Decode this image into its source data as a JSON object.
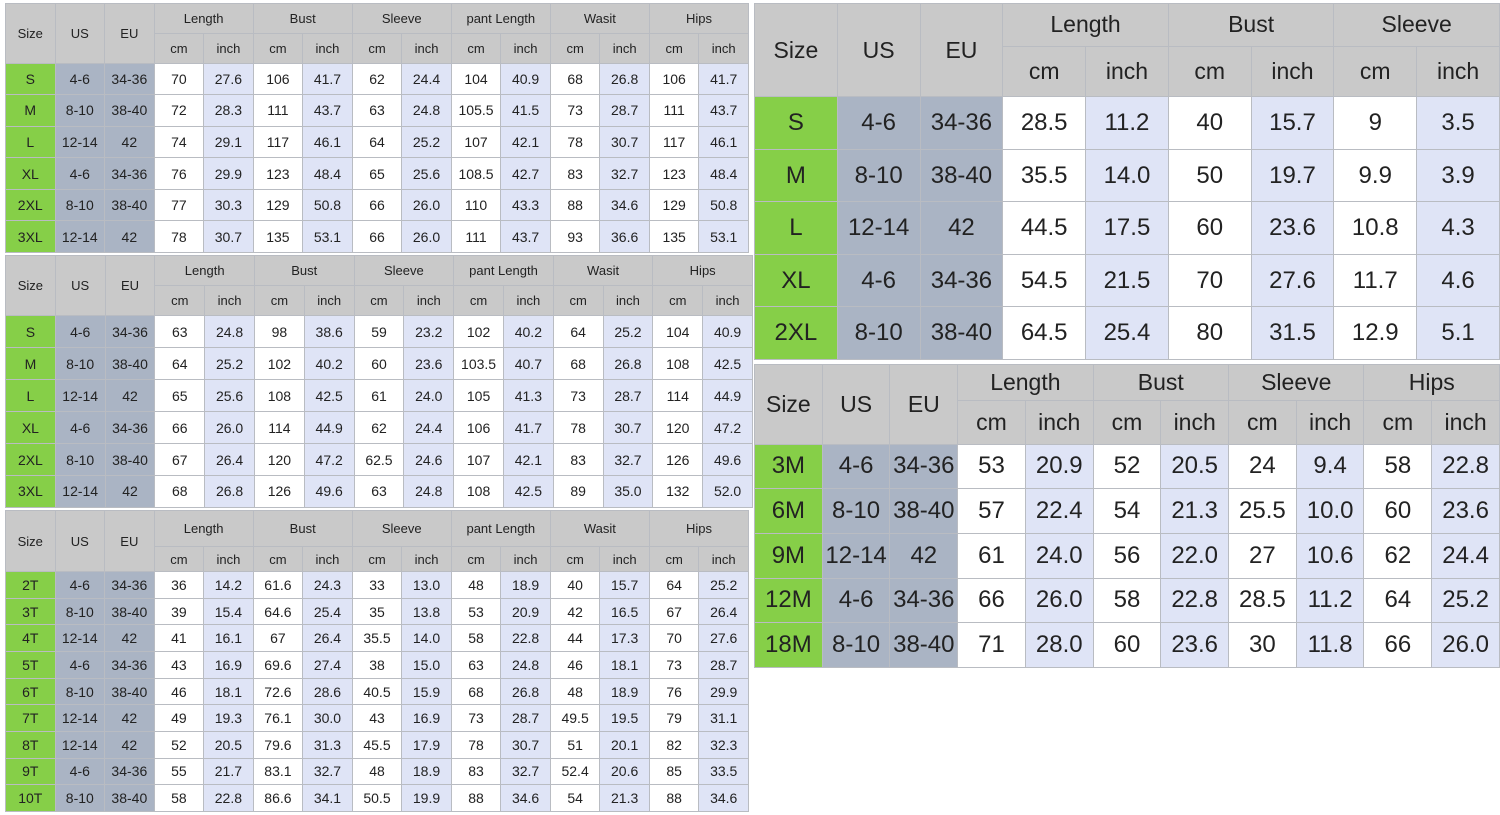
{
  "tables": [
    {
      "groups": [
        "Length",
        "Bust",
        "Sleeve",
        "pant Length",
        "Wasit",
        "Hips"
      ],
      "fixed_headers": [
        "Size",
        "US",
        "EU"
      ],
      "unit_headers": [
        "cm",
        "inch"
      ],
      "rows": [
        [
          "S",
          "4-6",
          "34-36",
          "70",
          "27.6",
          "106",
          "41.7",
          "62",
          "24.4",
          "104",
          "40.9",
          "68",
          "26.8",
          "106",
          "41.7"
        ],
        [
          "M",
          "8-10",
          "38-40",
          "72",
          "28.3",
          "111",
          "43.7",
          "63",
          "24.8",
          "105.5",
          "41.5",
          "73",
          "28.7",
          "111",
          "43.7"
        ],
        [
          "L",
          "12-14",
          "42",
          "74",
          "29.1",
          "117",
          "46.1",
          "64",
          "25.2",
          "107",
          "42.1",
          "78",
          "30.7",
          "117",
          "46.1"
        ],
        [
          "XL",
          "4-6",
          "34-36",
          "76",
          "29.9",
          "123",
          "48.4",
          "65",
          "25.6",
          "108.5",
          "42.7",
          "83",
          "32.7",
          "123",
          "48.4"
        ],
        [
          "2XL",
          "8-10",
          "38-40",
          "77",
          "30.3",
          "129",
          "50.8",
          "66",
          "26.0",
          "110",
          "43.3",
          "88",
          "34.6",
          "129",
          "50.8"
        ],
        [
          "3XL",
          "12-14",
          "42",
          "78",
          "30.7",
          "135",
          "53.1",
          "66",
          "26.0",
          "111",
          "43.7",
          "93",
          "36.6",
          "135",
          "53.1"
        ]
      ]
    },
    {
      "groups": [
        "Length",
        "Bust",
        "Sleeve",
        "pant Length",
        "Wasit",
        "Hips"
      ],
      "fixed_headers": [
        "Size",
        "US",
        "EU"
      ],
      "unit_headers": [
        "cm",
        "inch"
      ],
      "rows": [
        [
          "S",
          "4-6",
          "34-36",
          "63",
          "24.8",
          "98",
          "38.6",
          "59",
          "23.2",
          "102",
          "40.2",
          "64",
          "25.2",
          "104",
          "40.9"
        ],
        [
          "M",
          "8-10",
          "38-40",
          "64",
          "25.2",
          "102",
          "40.2",
          "60",
          "23.6",
          "103.5",
          "40.7",
          "68",
          "26.8",
          "108",
          "42.5"
        ],
        [
          "L",
          "12-14",
          "42",
          "65",
          "25.6",
          "108",
          "42.5",
          "61",
          "24.0",
          "105",
          "41.3",
          "73",
          "28.7",
          "114",
          "44.9"
        ],
        [
          "XL",
          "4-6",
          "34-36",
          "66",
          "26.0",
          "114",
          "44.9",
          "62",
          "24.4",
          "106",
          "41.7",
          "78",
          "30.7",
          "120",
          "47.2"
        ],
        [
          "2XL",
          "8-10",
          "38-40",
          "67",
          "26.4",
          "120",
          "47.2",
          "62.5",
          "24.6",
          "107",
          "42.1",
          "83",
          "32.7",
          "126",
          "49.6"
        ],
        [
          "3XL",
          "12-14",
          "42",
          "68",
          "26.8",
          "126",
          "49.6",
          "63",
          "24.8",
          "108",
          "42.5",
          "89",
          "35.0",
          "132",
          "52.0"
        ]
      ]
    },
    {
      "groups": [
        "Length",
        "Bust",
        "Sleeve",
        "pant Length",
        "Wasit",
        "Hips"
      ],
      "fixed_headers": [
        "Size",
        "US",
        "EU"
      ],
      "unit_headers": [
        "cm",
        "inch"
      ],
      "rows": [
        [
          "2T",
          "4-6",
          "34-36",
          "36",
          "14.2",
          "61.6",
          "24.3",
          "33",
          "13.0",
          "48",
          "18.9",
          "40",
          "15.7",
          "64",
          "25.2"
        ],
        [
          "3T",
          "8-10",
          "38-40",
          "39",
          "15.4",
          "64.6",
          "25.4",
          "35",
          "13.8",
          "53",
          "20.9",
          "42",
          "16.5",
          "67",
          "26.4"
        ],
        [
          "4T",
          "12-14",
          "42",
          "41",
          "16.1",
          "67",
          "26.4",
          "35.5",
          "14.0",
          "58",
          "22.8",
          "44",
          "17.3",
          "70",
          "27.6"
        ],
        [
          "5T",
          "4-6",
          "34-36",
          "43",
          "16.9",
          "69.6",
          "27.4",
          "38",
          "15.0",
          "63",
          "24.8",
          "46",
          "18.1",
          "73",
          "28.7"
        ],
        [
          "6T",
          "8-10",
          "38-40",
          "46",
          "18.1",
          "72.6",
          "28.6",
          "40.5",
          "15.9",
          "68",
          "26.8",
          "48",
          "18.9",
          "76",
          "29.9"
        ],
        [
          "7T",
          "12-14",
          "42",
          "49",
          "19.3",
          "76.1",
          "30.0",
          "43",
          "16.9",
          "73",
          "28.7",
          "49.5",
          "19.5",
          "79",
          "31.1"
        ],
        [
          "8T",
          "12-14",
          "42",
          "52",
          "20.5",
          "79.6",
          "31.3",
          "45.5",
          "17.9",
          "78",
          "30.7",
          "51",
          "20.1",
          "82",
          "32.3"
        ],
        [
          "9T",
          "4-6",
          "34-36",
          "55",
          "21.7",
          "83.1",
          "32.7",
          "48",
          "18.9",
          "83",
          "32.7",
          "52.4",
          "20.6",
          "85",
          "33.5"
        ],
        [
          "10T",
          "8-10",
          "38-40",
          "58",
          "22.8",
          "86.6",
          "34.1",
          "50.5",
          "19.9",
          "88",
          "34.6",
          "54",
          "21.3",
          "88",
          "34.6"
        ]
      ]
    },
    {
      "groups": [
        "Length",
        "Bust",
        "Sleeve"
      ],
      "fixed_headers": [
        "Size",
        "US",
        "EU"
      ],
      "unit_headers": [
        "cm",
        "inch"
      ],
      "rows": [
        [
          "S",
          "4-6",
          "34-36",
          "28.5",
          "11.2",
          "40",
          "15.7",
          "9",
          "3.5"
        ],
        [
          "M",
          "8-10",
          "38-40",
          "35.5",
          "14.0",
          "50",
          "19.7",
          "9.9",
          "3.9"
        ],
        [
          "L",
          "12-14",
          "42",
          "44.5",
          "17.5",
          "60",
          "23.6",
          "10.8",
          "4.3"
        ],
        [
          "XL",
          "4-6",
          "34-36",
          "54.5",
          "21.5",
          "70",
          "27.6",
          "11.7",
          "4.6"
        ],
        [
          "2XL",
          "8-10",
          "38-40",
          "64.5",
          "25.4",
          "80",
          "31.5",
          "12.9",
          "5.1"
        ]
      ]
    },
    {
      "groups": [
        "Length",
        "Bust",
        "Sleeve",
        "Hips"
      ],
      "fixed_headers": [
        "Size",
        "US",
        "EU"
      ],
      "unit_headers": [
        "cm",
        "inch"
      ],
      "rows": [
        [
          "3M",
          "4-6",
          "34-36",
          "53",
          "20.9",
          "52",
          "20.5",
          "24",
          "9.4",
          "58",
          "22.8"
        ],
        [
          "6M",
          "8-10",
          "38-40",
          "57",
          "22.4",
          "54",
          "21.3",
          "25.5",
          "10.0",
          "60",
          "23.6"
        ],
        [
          "9M",
          "12-14",
          "42",
          "61",
          "24.0",
          "56",
          "22.0",
          "27",
          "10.6",
          "62",
          "24.4"
        ],
        [
          "12M",
          "4-6",
          "34-36",
          "66",
          "26.0",
          "58",
          "22.8",
          "28.5",
          "11.2",
          "64",
          "25.2"
        ],
        [
          "18M",
          "8-10",
          "38-40",
          "71",
          "28.0",
          "60",
          "23.6",
          "30",
          "11.8",
          "66",
          "26.0"
        ]
      ]
    }
  ],
  "colors": {
    "header": "#c9c9c9",
    "size": "#86cf48",
    "us_eu": "#aab4c4",
    "inch": "#dfe4f6",
    "cm": "#ffffff"
  }
}
